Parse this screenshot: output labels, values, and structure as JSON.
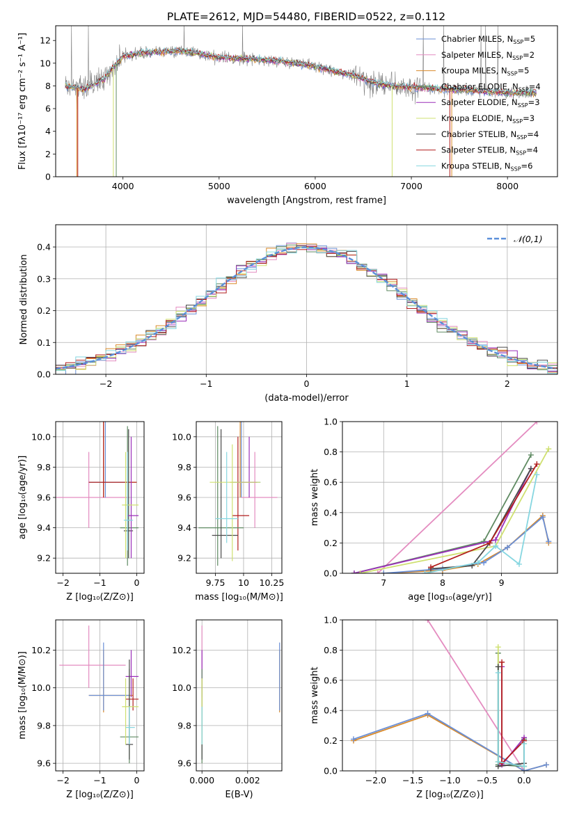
{
  "figure": {
    "title": "PLATE=2612, MJD=54480, FIBERID=0522, z=0.112"
  },
  "colors": {
    "chabrier_miles": "#6a8fd6",
    "salpeter_miles": "#e48cc0",
    "kroupa_miles": "#d98a2a",
    "chabrier_elodie": "#5f8a62",
    "salpeter_elodie": "#9a2fb8",
    "kroupa_elodie": "#cfe070",
    "chabrier_stelib": "#4a4a4a",
    "salpeter_stelib": "#b21d1d",
    "kroupa_stelib": "#86d6e0",
    "gaussian": "#5b8fd9",
    "data": "#808080"
  },
  "chart_data": [
    {
      "id": "spectrum",
      "type": "line",
      "xlabel": "wavelength [Angstrom, rest frame]",
      "ylabel": "Flux [fλ10⁻¹⁷ erg cm⁻² s⁻¹ A⁻¹]",
      "xlim": [
        3300,
        8520
      ],
      "ylim": [
        0,
        13.3
      ],
      "xticks": [
        4000,
        5000,
        6000,
        7000,
        8000
      ],
      "yticks": [
        0,
        2,
        4,
        6,
        8,
        10,
        12
      ],
      "grid": false,
      "legend_position": "upper-right",
      "continuum_x": [
        3400,
        3600,
        3800,
        4000,
        4200,
        4400,
        4600,
        4800,
        5000,
        5200,
        5400,
        5600,
        5800,
        6000,
        6200,
        6400,
        6600,
        6800,
        7000,
        7200,
        7400,
        7600,
        7800,
        8000,
        8300
      ],
      "continuum_y": [
        8.0,
        7.7,
        8.6,
        10.6,
        10.9,
        11.0,
        11.1,
        10.8,
        10.5,
        10.4,
        10.3,
        10.2,
        10.0,
        9.7,
        9.3,
        8.9,
        8.3,
        8.0,
        7.9,
        7.8,
        7.7,
        7.6,
        7.5,
        7.4,
        7.4
      ],
      "series": [
        {
          "name": "Chabrier MILES, N_SSP=5",
          "color_key": "chabrier_miles"
        },
        {
          "name": "Salpeter MILES, N_SSP=2",
          "color_key": "salpeter_miles"
        },
        {
          "name": "Kroupa MILES, N_SSP=5",
          "color_key": "kroupa_miles"
        },
        {
          "name": "Chabrier ELODIE, N_SSP=4",
          "color_key": "chabrier_elodie"
        },
        {
          "name": "Salpeter ELODIE, N_SSP=3",
          "color_key": "salpeter_elodie"
        },
        {
          "name": "Kroupa ELODIE, N_SSP=3",
          "color_key": "kroupa_elodie"
        },
        {
          "name": "Chabrier STELIB, N_SSP=4",
          "color_key": "chabrier_stelib"
        },
        {
          "name": "Salpeter STELIB, N_SSP=4",
          "color_key": "salpeter_stelib"
        },
        {
          "name": "Kroupa STELIB, N_SSP=6",
          "color_key": "kroupa_stelib"
        }
      ]
    },
    {
      "id": "residuals",
      "type": "histogram",
      "xlabel": "(data-model)/error",
      "ylabel": "Normed distribution",
      "xlim": [
        -2.5,
        2.5
      ],
      "ylim": [
        0,
        0.47
      ],
      "xticks": [
        -2,
        -1,
        0,
        1,
        2
      ],
      "yticks": [
        0.0,
        0.1,
        0.2,
        0.3,
        0.4
      ],
      "grid": true,
      "legend": "𝒩(0,1)",
      "legend_position": "upper-right",
      "bin_width": 0.1
    },
    {
      "id": "age_vs_Z",
      "type": "errorbar",
      "xlabel": "Z [log₁₀(Z/Z⊙)]",
      "ylabel": "age  [log₁₀(age/yr)]",
      "xlim": [
        -2.2,
        0.2
      ],
      "ylim": [
        9.1,
        10.1
      ],
      "xticks": [
        -2,
        -1,
        0
      ],
      "yticks": [
        9.2,
        9.4,
        9.6,
        9.8,
        10.0
      ],
      "grid": true,
      "points": [
        {
          "c": "salpeter_miles",
          "x": -1.3,
          "y": 9.6,
          "xlo": -2.2,
          "xhi": -0.2,
          "ylo": 9.4,
          "yhi": 9.9
        },
        {
          "c": "kroupa_miles",
          "x": -0.9,
          "y": 9.7,
          "xlo": -1.3,
          "xhi": 0.0,
          "ylo": 9.6,
          "yhi": 10.1
        },
        {
          "c": "chabrier_miles",
          "x": -0.85,
          "y": 9.7,
          "xlo": -1.3,
          "xhi": -0.3,
          "ylo": 9.6,
          "yhi": 10.1
        },
        {
          "c": "salpeter_stelib",
          "x": -0.9,
          "y": 9.7,
          "xlo": -1.3,
          "xhi": 0.0,
          "ylo": 9.6,
          "yhi": 10.1
        },
        {
          "c": "chabrier_elodie",
          "x": -0.25,
          "y": 9.4,
          "xlo": -0.45,
          "xhi": 0.05,
          "ylo": 9.15,
          "yhi": 10.07
        },
        {
          "c": "chabrier_stelib",
          "x": -0.22,
          "y": 9.38,
          "xlo": -0.35,
          "xhi": -0.1,
          "ylo": 9.2,
          "yhi": 10.05
        },
        {
          "c": "salpeter_elodie",
          "x": -0.15,
          "y": 9.48,
          "xlo": -0.25,
          "xhi": 0.05,
          "ylo": 9.2,
          "yhi": 10.0
        },
        {
          "c": "kroupa_elodie",
          "x": -0.3,
          "y": 9.55,
          "xlo": -0.4,
          "xhi": 0.05,
          "ylo": 9.2,
          "yhi": 9.9
        },
        {
          "c": "kroupa_stelib",
          "x": -0.25,
          "y": 9.45,
          "xlo": -0.35,
          "xhi": -0.1,
          "ylo": 9.25,
          "yhi": 9.9
        }
      ]
    },
    {
      "id": "age_vs_mass",
      "type": "errorbar",
      "xlabel": "mass [log₁₀(M/M⊙)]",
      "ylabel": "",
      "xlim": [
        9.58,
        10.34
      ],
      "ylim": [
        9.1,
        10.1
      ],
      "xticks": [
        9.75,
        10.0,
        10.25
      ],
      "yticks": [
        9.2,
        9.4,
        9.6,
        9.8,
        10.0
      ],
      "grid": true,
      "points": [
        {
          "c": "salpeter_miles",
          "x": 10.1,
          "y": 9.6,
          "xlo": 9.98,
          "xhi": 10.3,
          "ylo": 9.4,
          "yhi": 9.9
        },
        {
          "c": "kroupa_miles",
          "x": 9.97,
          "y": 9.7,
          "xlo": 9.88,
          "xhi": 10.12,
          "ylo": 9.6,
          "yhi": 10.1
        },
        {
          "c": "chabrier_miles",
          "x": 9.98,
          "y": 9.7,
          "xlo": 9.9,
          "xhi": 10.15,
          "ylo": 9.6,
          "yhi": 10.1
        },
        {
          "c": "salpeter_stelib",
          "x": 9.95,
          "y": 9.48,
          "xlo": 9.9,
          "xhi": 10.05,
          "ylo": 9.25,
          "yhi": 10.0
        },
        {
          "c": "salpeter_elodie",
          "x": 10.05,
          "y": 9.7,
          "xlo": 9.95,
          "xhi": 10.12,
          "ylo": 9.6,
          "yhi": 10.0
        },
        {
          "c": "chabrier_elodie",
          "x": 9.77,
          "y": 9.4,
          "xlo": 9.6,
          "xhi": 10.0,
          "ylo": 9.15,
          "yhi": 10.07
        },
        {
          "c": "chabrier_stelib",
          "x": 9.8,
          "y": 9.35,
          "xlo": 9.72,
          "xhi": 9.95,
          "ylo": 9.2,
          "yhi": 10.05
        },
        {
          "c": "kroupa_elodie",
          "x": 9.9,
          "y": 9.7,
          "xlo": 9.7,
          "xhi": 10.15,
          "ylo": 9.18,
          "yhi": 9.95
        },
        {
          "c": "kroupa_stelib",
          "x": 9.85,
          "y": 9.46,
          "xlo": 9.75,
          "xhi": 9.95,
          "ylo": 9.3,
          "yhi": 9.9
        }
      ]
    },
    {
      "id": "weight_vs_age",
      "type": "line",
      "xlabel": "age  [log₁₀(age/yr)]",
      "ylabel": "mass weight",
      "xlim": [
        6.3,
        9.95
      ],
      "ylim": [
        0.0,
        1.0
      ],
      "xticks": [
        7,
        8,
        9
      ],
      "yticks": [
        0.0,
        0.2,
        0.4,
        0.6,
        0.8,
        1.0
      ],
      "grid": true,
      "series": [
        {
          "c": "salpeter_miles",
          "x": [
            6.9,
            9.6
          ],
          "y": [
            0.0,
            1.0
          ]
        },
        {
          "c": "kroupa_miles",
          "x": [
            7.0,
            8.0,
            8.6,
            9.1,
            9.7,
            9.8
          ],
          "y": [
            0.0,
            0.02,
            0.06,
            0.17,
            0.38,
            0.2
          ]
        },
        {
          "c": "chabrier_miles",
          "x": [
            7.0,
            8.0,
            8.7,
            9.1,
            9.7,
            9.8
          ],
          "y": [
            0.0,
            0.03,
            0.07,
            0.17,
            0.37,
            0.21
          ]
        },
        {
          "c": "chabrier_elodie",
          "x": [
            6.5,
            8.7,
            9.5
          ],
          "y": [
            0.0,
            0.21,
            0.78
          ]
        },
        {
          "c": "salpeter_elodie",
          "x": [
            6.5,
            8.9,
            9.5
          ],
          "y": [
            0.0,
            0.22,
            0.69
          ]
        },
        {
          "c": "kroupa_elodie",
          "x": [
            6.6,
            8.9,
            9.8
          ],
          "y": [
            0.0,
            0.18,
            0.82
          ]
        },
        {
          "c": "chabrier_stelib",
          "x": [
            7.8,
            8.5,
            8.8,
            9.5
          ],
          "y": [
            0.03,
            0.05,
            0.2,
            0.69
          ]
        },
        {
          "c": "salpeter_stelib",
          "x": [
            7.8,
            8.8,
            9.6
          ],
          "y": [
            0.04,
            0.2,
            0.72
          ]
        },
        {
          "c": "kroupa_stelib",
          "x": [
            7.7,
            8.6,
            8.9,
            9.3,
            9.6
          ],
          "y": [
            0.0,
            0.07,
            0.18,
            0.06,
            0.65
          ]
        }
      ]
    },
    {
      "id": "mass_vs_Z",
      "type": "errorbar",
      "xlabel": "Z [log₁₀(Z/Z⊙)]",
      "ylabel": "mass [log₁₀(M/M⊙)]",
      "xlim": [
        -2.2,
        0.2
      ],
      "ylim": [
        9.56,
        10.36
      ],
      "xticks": [
        -2,
        -1,
        0
      ],
      "yticks": [
        9.6,
        9.8,
        10.0,
        10.2
      ],
      "grid": true,
      "points": [
        {
          "c": "salpeter_miles",
          "x": -1.3,
          "y": 10.12,
          "xlo": -2.1,
          "xhi": -0.3,
          "ylo": 10.0,
          "yhi": 10.33
        },
        {
          "c": "kroupa_miles",
          "x": -0.9,
          "y": 9.96,
          "xlo": -1.3,
          "xhi": -0.1,
          "ylo": 9.87,
          "yhi": 10.2
        },
        {
          "c": "chabrier_miles",
          "x": -0.9,
          "y": 9.96,
          "xlo": -1.3,
          "xhi": -0.2,
          "ylo": 9.88,
          "yhi": 10.24
        },
        {
          "c": "salpeter_elodie",
          "x": -0.15,
          "y": 10.06,
          "xlo": -0.3,
          "xhi": 0.05,
          "ylo": 9.95,
          "yhi": 10.2
        },
        {
          "c": "salpeter_stelib",
          "x": -0.1,
          "y": 9.94,
          "xlo": -0.3,
          "xhi": 0.05,
          "ylo": 9.88,
          "yhi": 10.05
        },
        {
          "c": "chabrier_elodie",
          "x": -0.2,
          "y": 9.74,
          "xlo": -0.45,
          "xhi": 0.05,
          "ylo": 9.6,
          "yhi": 10.1
        },
        {
          "c": "chabrier_stelib",
          "x": -0.2,
          "y": 9.7,
          "xlo": -0.3,
          "xhi": -0.1,
          "ylo": 9.62,
          "yhi": 10.15
        },
        {
          "c": "kroupa_elodie",
          "x": -0.3,
          "y": 9.9,
          "xlo": -0.4,
          "xhi": 0.05,
          "ylo": 9.7,
          "yhi": 10.05
        },
        {
          "c": "kroupa_stelib",
          "x": -0.2,
          "y": 9.79,
          "xlo": -0.3,
          "xhi": -0.05,
          "ylo": 9.7,
          "yhi": 9.9
        }
      ]
    },
    {
      "id": "mass_vs_EBV",
      "type": "errorbar",
      "xlabel": "E(B-V)",
      "ylabel": "",
      "xlim": [
        -0.00025,
        0.0035
      ],
      "ylim": [
        9.56,
        10.36
      ],
      "xticks": [
        0.0,
        0.002
      ],
      "xtick_labels": [
        "0.000",
        "0.002"
      ],
      "yticks": [
        9.6,
        9.8,
        10.0,
        10.2
      ],
      "grid": true,
      "points": [
        {
          "c": "salpeter_miles",
          "x": 0.0,
          "y": 10.12,
          "xlo": 0.0,
          "xhi": 0.0,
          "ylo": 10.0,
          "yhi": 10.33
        },
        {
          "c": "salpeter_elodie",
          "x": 0.0,
          "y": 10.06,
          "xlo": 0.0,
          "xhi": 0.0,
          "ylo": 9.95,
          "yhi": 10.2
        },
        {
          "c": "salpeter_stelib",
          "x": 0.0,
          "y": 9.94,
          "xlo": 0.0,
          "xhi": 0.0,
          "ylo": 9.88,
          "yhi": 10.05
        },
        {
          "c": "chabrier_elodie",
          "x": 0.0,
          "y": 9.74,
          "xlo": 0.0,
          "xhi": 0.0,
          "ylo": 9.6,
          "yhi": 10.1
        },
        {
          "c": "chabrier_stelib",
          "x": 0.0,
          "y": 9.7,
          "xlo": 0.0,
          "xhi": 0.0,
          "ylo": 9.62,
          "yhi": 9.9
        },
        {
          "c": "kroupa_elodie",
          "x": 0.0,
          "y": 9.9,
          "xlo": 0.0,
          "xhi": 0.0,
          "ylo": 9.7,
          "yhi": 10.05
        },
        {
          "c": "kroupa_stelib",
          "x": 0.0,
          "y": 9.79,
          "xlo": 0.0,
          "xhi": 0.0,
          "ylo": 9.7,
          "yhi": 9.9
        },
        {
          "c": "kroupa_miles",
          "x": 0.0034,
          "y": 10.0,
          "xlo": 0.0034,
          "xhi": 0.0034,
          "ylo": 9.87,
          "yhi": 10.2
        },
        {
          "c": "chabrier_miles",
          "x": 0.0034,
          "y": 10.05,
          "xlo": 0.0034,
          "xhi": 0.0034,
          "ylo": 9.88,
          "yhi": 10.24
        }
      ]
    },
    {
      "id": "weight_vs_Z",
      "type": "line",
      "xlabel": "Z [log₁₀(Z/Z⊙)]",
      "ylabel": "mass weight",
      "xlim": [
        -2.45,
        0.45
      ],
      "ylim": [
        0.0,
        1.0
      ],
      "xticks": [
        -2.0,
        -1.5,
        -1.0,
        -0.5,
        0.0
      ],
      "xtick_labels": [
        "−2.0",
        "−1.5",
        "−1.0",
        "−0.5",
        "0.0"
      ],
      "yticks": [
        0.0,
        0.2,
        0.4,
        0.6,
        0.8,
        1.0
      ],
      "grid": true,
      "series": [
        {
          "c": "salpeter_miles",
          "x": [
            -1.3,
            0.0
          ],
          "y": [
            1.0,
            0.0
          ]
        },
        {
          "c": "kroupa_miles",
          "x": [
            -2.3,
            -1.3,
            0.0,
            0.3
          ],
          "y": [
            0.2,
            0.37,
            0.0,
            0.04
          ]
        },
        {
          "c": "chabrier_miles",
          "x": [
            -2.3,
            -1.3,
            0.0,
            0.3
          ],
          "y": [
            0.21,
            0.38,
            0.0,
            0.04
          ]
        },
        {
          "c": "chabrier_elodie",
          "x": [
            -0.35,
            -0.35,
            0.0,
            0.0
          ],
          "y": [
            0.78,
            0.04,
            0.03,
            0.21
          ]
        },
        {
          "c": "salpeter_elodie",
          "x": [
            -0.3,
            -0.3,
            0.0
          ],
          "y": [
            0.69,
            0.04,
            0.22
          ]
        },
        {
          "c": "kroupa_elodie",
          "x": [
            -0.35,
            -0.35,
            0.0,
            0.0
          ],
          "y": [
            0.82,
            0.06,
            0.03,
            0.18
          ]
        },
        {
          "c": "chabrier_stelib",
          "x": [
            -0.35,
            -0.35,
            0.0,
            0.0
          ],
          "y": [
            0.69,
            0.03,
            0.05,
            0.2
          ]
        },
        {
          "c": "salpeter_stelib",
          "x": [
            -0.3,
            -0.3,
            0.0
          ],
          "y": [
            0.72,
            0.05,
            0.2
          ]
        },
        {
          "c": "kroupa_stelib",
          "x": [
            -0.35,
            -0.35,
            0.0,
            0.0
          ],
          "y": [
            0.65,
            0.06,
            0.03,
            0.18
          ]
        }
      ]
    }
  ]
}
